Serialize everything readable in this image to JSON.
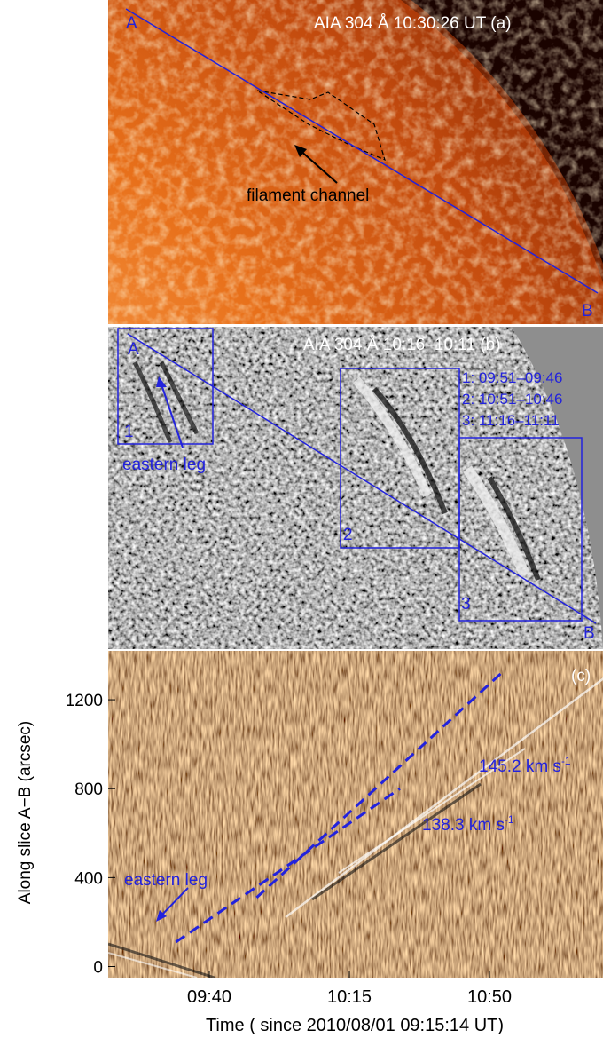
{
  "panel_a": {
    "title": "AIA 304 Å 10:30:26 UT  (a)",
    "label_a": "A",
    "label_b": "B",
    "annotation": "filament channel"
  },
  "panel_b": {
    "title": "AIA 304 Å 10:16–10:11 (b)",
    "label_a": "A",
    "label_b": "B",
    "box1": "1",
    "box2": "2",
    "box3": "3",
    "legend": [
      "1: 09:51–09:46",
      "2: 10:51–10:46",
      "3: 11:16–11:11"
    ],
    "annotation": "eastern leg"
  },
  "panel_c": {
    "label": "(c)",
    "speed1": "145.2 km s",
    "speed1_sup": "-1",
    "speed2": "138.3 km s",
    "speed2_sup": "-1",
    "annotation": "eastern leg"
  },
  "colors": {
    "blue": "#1a1aff",
    "line": "#2222dd"
  },
  "chart_data": {
    "type": "scatter",
    "title": "",
    "xlabel": "Time ( since 2010/08/01 09:15:14 UT)",
    "ylabel": "Along slice A−B (arcsec)",
    "xticks": [
      "09:40",
      "10:15",
      "10:50"
    ],
    "yticks": [
      "0",
      "400",
      "800",
      "1200"
    ],
    "ylim": [
      -50,
      1420
    ],
    "series": [
      {
        "name": "145.2 km s-1",
        "points": [
          [
            28.5,
            310
          ],
          [
            75.5,
            1320
          ]
        ]
      },
      {
        "name": "138.3 km s-1",
        "points": [
          [
            13,
            110
          ],
          [
            56,
            800
          ]
        ]
      }
    ]
  }
}
